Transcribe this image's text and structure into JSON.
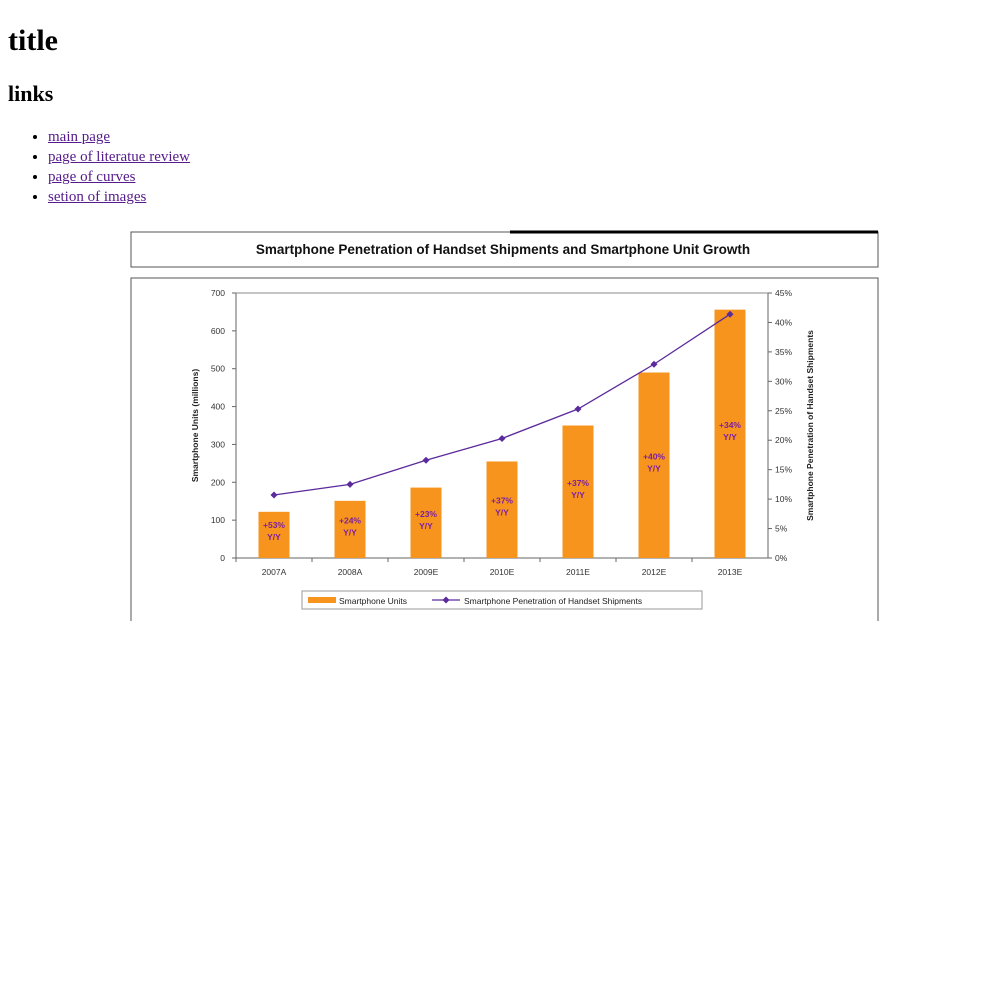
{
  "page": {
    "heading": "title",
    "links_heading": "links",
    "links": [
      {
        "label": "main page"
      },
      {
        "label": "page of literatue review"
      },
      {
        "label": "page of curves"
      },
      {
        "label": "setion of images"
      }
    ]
  },
  "chart_data": {
    "type": "bar",
    "title": "Smartphone Penetration of Handset Shipments and Smartphone Unit Growth",
    "categories": [
      "2007A",
      "2008A",
      "2009E",
      "2010E",
      "2011E",
      "2012E",
      "2013E"
    ],
    "ylabel": "Smartphone Units (millions)",
    "y2label": "Smartphone Penetration of Handset Shipments",
    "ylim": [
      0,
      700
    ],
    "y2lim": [
      0,
      45
    ],
    "yticks": [
      "0",
      "100",
      "200",
      "300",
      "400",
      "500",
      "600",
      "700"
    ],
    "y2ticks": [
      "0%",
      "5%",
      "10%",
      "15%",
      "20%",
      "25%",
      "30%",
      "35%",
      "40%",
      "45%"
    ],
    "series": [
      {
        "name": "Smartphone Units",
        "type": "bar",
        "color": "#f7941d",
        "values": [
          122,
          151,
          186,
          255,
          350,
          490,
          656
        ]
      },
      {
        "name": "Smartphone Penetration of Handset Shipments",
        "type": "line",
        "axis": "right",
        "color": "#5b2a9c",
        "values": [
          10.7,
          12.5,
          16.6,
          20.3,
          25.3,
          32.9,
          41.4
        ]
      }
    ],
    "bar_labels": [
      [
        "+53%",
        "Y/Y"
      ],
      [
        "+24%",
        "Y/Y"
      ],
      [
        "+23%",
        "Y/Y"
      ],
      [
        "+37%",
        "Y/Y"
      ],
      [
        "+37%",
        "Y/Y"
      ],
      [
        "+40%",
        "Y/Y"
      ],
      [
        "+34%",
        "Y/Y"
      ]
    ],
    "label_color": "#7b1fa2",
    "legend_position": "bottom",
    "grid": false
  }
}
